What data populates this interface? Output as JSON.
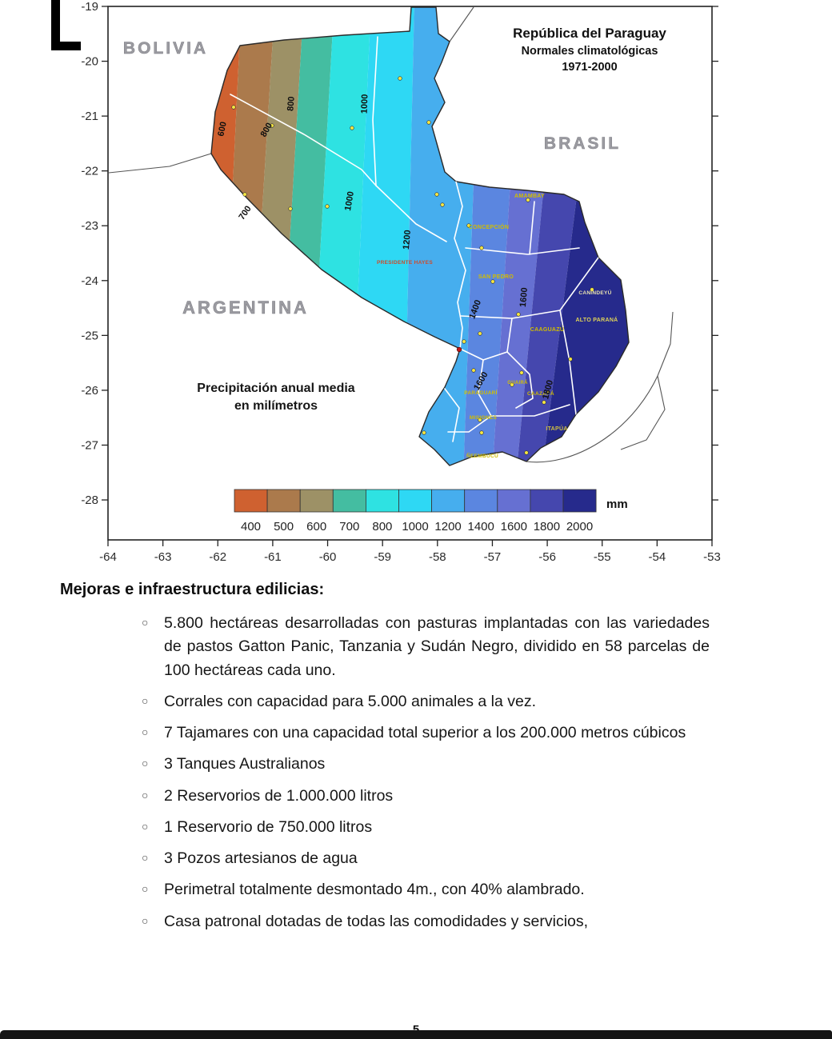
{
  "map": {
    "title": [
      "República del Paraguay",
      "Normales climatológicas",
      "1971-2000"
    ],
    "countries": {
      "bolivia": "BOLIVIA",
      "brasil": "BRASIL",
      "argentina": "ARGENTINA"
    },
    "caption": [
      "Precipitación anual media",
      "en milímetros"
    ],
    "axis": {
      "y_ticks": [
        "-19",
        "-20",
        "-21",
        "-22",
        "-23",
        "-24",
        "-25",
        "-26",
        "-27",
        "-28"
      ],
      "x_ticks": [
        "-64",
        "-63",
        "-62",
        "-61",
        "-60",
        "-59",
        "-58",
        "-57",
        "-56",
        "-55",
        "-54",
        "-53"
      ]
    },
    "legend": {
      "unit": "mm",
      "values": [
        "400",
        "500",
        "600",
        "700",
        "800",
        "1000",
        "1200",
        "1400",
        "1600",
        "1800",
        "2000"
      ],
      "colors": [
        "#cf6130",
        "#ab7a4c",
        "#9d9166",
        "#44bda1",
        "#2ee2e2",
        "#2ed8f4",
        "#46aeee",
        "#5b86e0",
        "#6670d2",
        "#4547ae",
        "#262a8c"
      ]
    },
    "departments": [
      "AMAMBAY",
      "CONCEPCIÓN",
      "PRESIDENTE HAYES",
      "SAN PEDRO",
      "CANINDEYÚ",
      "ALTO PARANÁ",
      "CAAGUAZÚ",
      "GUAIRÁ",
      "CAAZAPÁ",
      "PARAGUARÍ",
      "MISIONES",
      "ITAPÚA",
      "ÑEEMBUCÚ"
    ],
    "contour_labels": [
      "600",
      "700",
      "800",
      "800",
      "1000",
      "1000",
      "1200",
      "1400",
      "1600",
      "1600",
      "1800"
    ]
  },
  "section": {
    "heading": "Mejoras e infraestructura edilicias:",
    "bullets": [
      "5.800 hectáreas desarrolladas con pasturas implantadas con las variedades de pastos Gatton Panic, Tanzania y Sudán Negro, dividido en 58 parcelas de 100 hectáreas cada uno.",
      "Corrales con capacidad para 5.000 animales a la vez.",
      "7 Tajamares con una capacidad total superior a los 200.000 metros cúbicos",
      "3 Tanques Australianos",
      "2 Reservorios de 1.000.000 litros",
      "1 Reservorio de 750.000 litros",
      "3 Pozos artesianos de agua",
      "Perimetral totalmente desmontado 4m., con 40% alambrado.",
      "Casa patronal dotadas de todas las comodidades y servicios,"
    ]
  },
  "footer": {
    "page_number": "5"
  }
}
